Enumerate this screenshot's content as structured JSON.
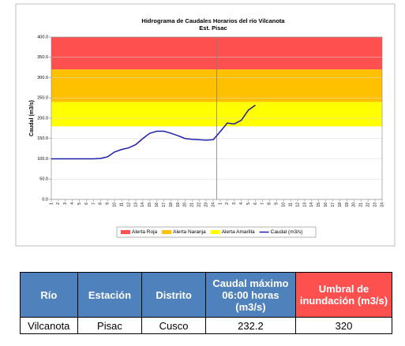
{
  "chart_data": {
    "type": "line",
    "title": "Hidrograma de Caudales Horarios del río Vilcanota",
    "subtitle": "Est. Pisac",
    "y_label": "Caudal (m3/s)",
    "categories": [
      "1",
      "2",
      "3",
      "4",
      "5",
      "6",
      "7",
      "8",
      "9",
      "10",
      "11",
      "12",
      "13",
      "14",
      "15",
      "16",
      "17",
      "18",
      "19",
      "20",
      "21",
      "22",
      "23",
      "24",
      "1",
      "2",
      "3",
      "4",
      "5",
      "6",
      "7",
      "8",
      "9",
      "10",
      "11",
      "12",
      "13",
      "14",
      "15",
      "16",
      "17",
      "18",
      "19",
      "20",
      "21",
      "22",
      "23",
      "24"
    ],
    "series": [
      {
        "name": "Caudal (m3/s)",
        "color": "#1f1fa8",
        "values": [
          100,
          100,
          100,
          100,
          100,
          100,
          100,
          101,
          105,
          117,
          123,
          127,
          135,
          150,
          163,
          168,
          168,
          163,
          157,
          150,
          148,
          147,
          146,
          147,
          167,
          188,
          186,
          195,
          220,
          232.2,
          null,
          null,
          null,
          null,
          null,
          null,
          null,
          null,
          null,
          null,
          null,
          null,
          null,
          null,
          null,
          null,
          null,
          null
        ]
      }
    ],
    "bands": [
      {
        "name": "Alerta Roja",
        "color": "#ff5050",
        "from": 320,
        "to": 400
      },
      {
        "name": "Alerta Naranja",
        "color": "#ffc000",
        "from": 240,
        "to": 320
      },
      {
        "name": "Alerta Amarilla",
        "color": "#ffff00",
        "from": 180,
        "to": 240
      }
    ],
    "ylim": [
      0,
      400
    ],
    "yticks": [
      {
        "value": 0,
        "label": "0.0"
      },
      {
        "value": 50,
        "label": "50.0"
      },
      {
        "value": 100,
        "label": "100.0"
      },
      {
        "value": 150,
        "label": "150.0"
      },
      {
        "value": 200,
        "label": "200.0"
      },
      {
        "value": 250,
        "label": "250.0"
      },
      {
        "value": 300,
        "label": "300.0"
      },
      {
        "value": 350,
        "label": "350.0"
      },
      {
        "value": 400,
        "label": "400.0"
      }
    ],
    "grid": true
  },
  "table": {
    "headers": [
      "Río",
      "Estación",
      "Distrito",
      "Caudal máximo 06:00 horas (m3/s)",
      "Umbral de inundación (m3/s)"
    ],
    "rows": [
      [
        "Vilcanota",
        "Pisac",
        "Cusco",
        232.2,
        320
      ]
    ]
  }
}
